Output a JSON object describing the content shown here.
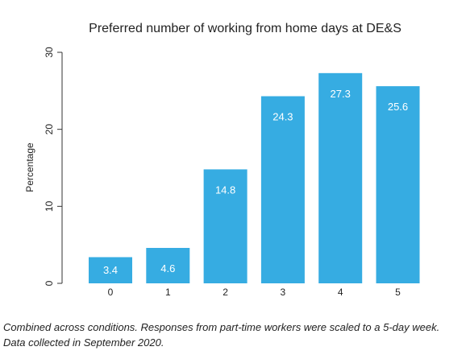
{
  "chart_data": {
    "type": "bar",
    "title": "Preferred number of working from home days at DE&S",
    "xlabel": "",
    "ylabel": "Percentage",
    "categories": [
      "0",
      "1",
      "2",
      "3",
      "4",
      "5"
    ],
    "values": [
      3.4,
      4.6,
      14.8,
      24.3,
      27.3,
      25.6
    ],
    "data_labels": [
      "3.4",
      "4.6",
      "14.8",
      "24.3",
      "27.3",
      "25.6"
    ],
    "y_ticks": [
      "0",
      "10",
      "20",
      "30"
    ],
    "ylim": [
      0,
      30
    ],
    "grid": false,
    "bar_color": "#36ace2"
  },
  "caption": "Combined across conditions. Responses from part-time workers were scaled to a 5-day week. Data collected in September 2020."
}
